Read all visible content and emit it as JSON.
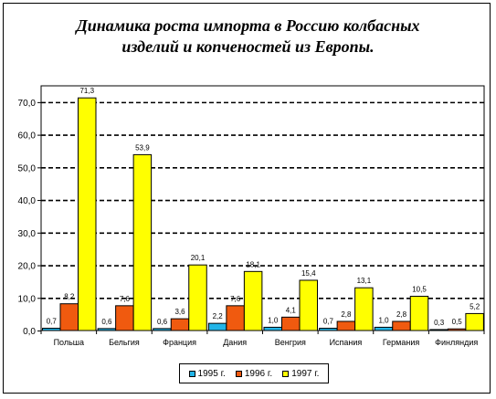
{
  "chart_data": {
    "type": "bar",
    "title_lines": [
      "Динамика роста импорта в Россию колбасных",
      "изделий и копченостей из Европы."
    ],
    "categories": [
      "Польша",
      "Бельгия",
      "Франция",
      "Дания",
      "Венгрия",
      "Испания",
      "Германия",
      "Финляндия"
    ],
    "series": [
      {
        "name": "1995 г.",
        "color": "#22B5E8",
        "values": [
          0.7,
          0.6,
          0.6,
          2.2,
          1.0,
          0.7,
          1.0,
          0.3
        ],
        "labels": [
          "0,7",
          "0,6",
          "0,6",
          "2,2",
          "1,0",
          "0,7",
          "1,0",
          "0,3"
        ]
      },
      {
        "name": "1996 г.",
        "color": "#F05A0F",
        "values": [
          8.2,
          7.6,
          3.6,
          7.6,
          4.1,
          2.8,
          2.8,
          0.5
        ],
        "labels": [
          "8,2",
          "7,6",
          "3,6",
          "7,6",
          "4,1",
          "2,8",
          "2,8",
          "0,5"
        ]
      },
      {
        "name": "1997 г.",
        "color": "#FFFF00",
        "values": [
          71.3,
          53.9,
          20.1,
          18.1,
          15.4,
          13.1,
          10.5,
          5.2
        ],
        "labels": [
          "71,3",
          "53,9",
          "20,1",
          "18,1",
          "15,4",
          "13,1",
          "10,5",
          "5,2"
        ]
      }
    ],
    "y_ticks": [
      "0,0",
      "10,0",
      "20,0",
      "30,0",
      "40,0",
      "50,0",
      "60,0",
      "70,0"
    ],
    "ylim": [
      0,
      75
    ],
    "grid": "dashed horizontal",
    "legend_position": "bottom-center"
  }
}
